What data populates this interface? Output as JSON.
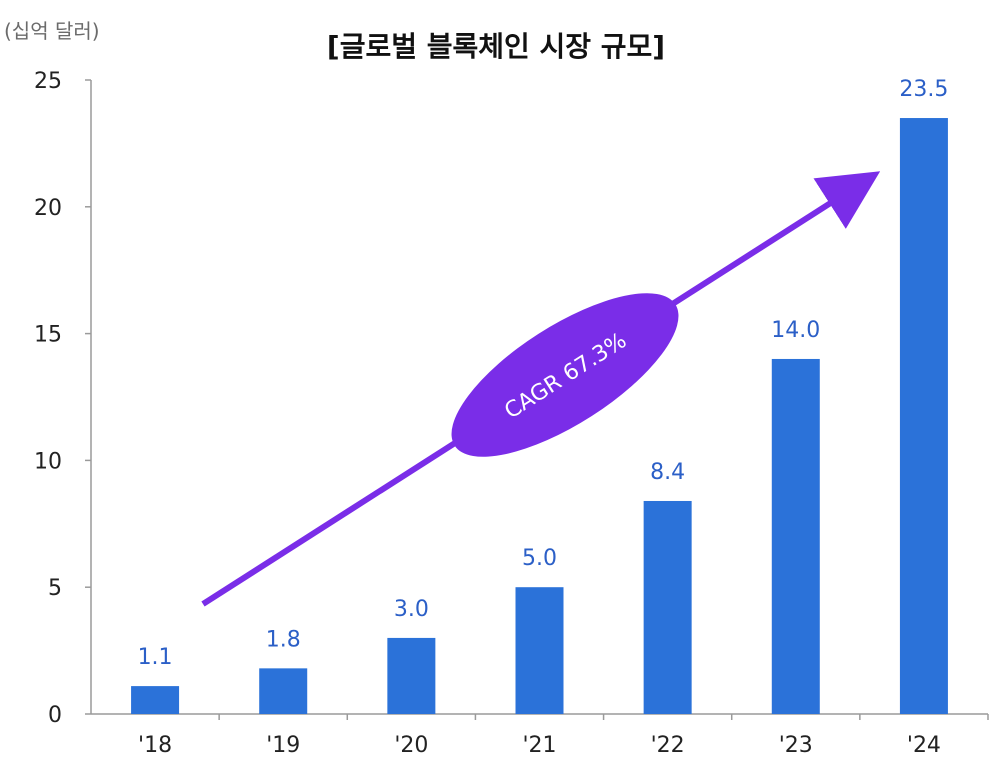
{
  "chart_data": {
    "type": "bar",
    "title": "[글로벌 블록체인 시장 규모]",
    "unit_label": "(십억 달러)",
    "categories": [
      "'18",
      "'19",
      "'20",
      "'21",
      "'22",
      "'23",
      "'24"
    ],
    "values": [
      1.1,
      1.8,
      3.0,
      5.0,
      8.4,
      14.0,
      23.5
    ],
    "value_labels": [
      "1.1",
      "1.8",
      "3.0",
      "5.0",
      "8.4",
      "14.0",
      "23.5"
    ],
    "ylim": [
      0,
      25
    ],
    "yticks": [
      0,
      5,
      10,
      15,
      20,
      25
    ],
    "grid": false,
    "annotation": {
      "text": "CAGR 67.3%",
      "color": "#7a2de8"
    },
    "colors": {
      "bar": "#2b72d9",
      "value_label": "#2b5fc7",
      "axis": "#9a9a9a",
      "arrow": "#7a2de8"
    }
  }
}
